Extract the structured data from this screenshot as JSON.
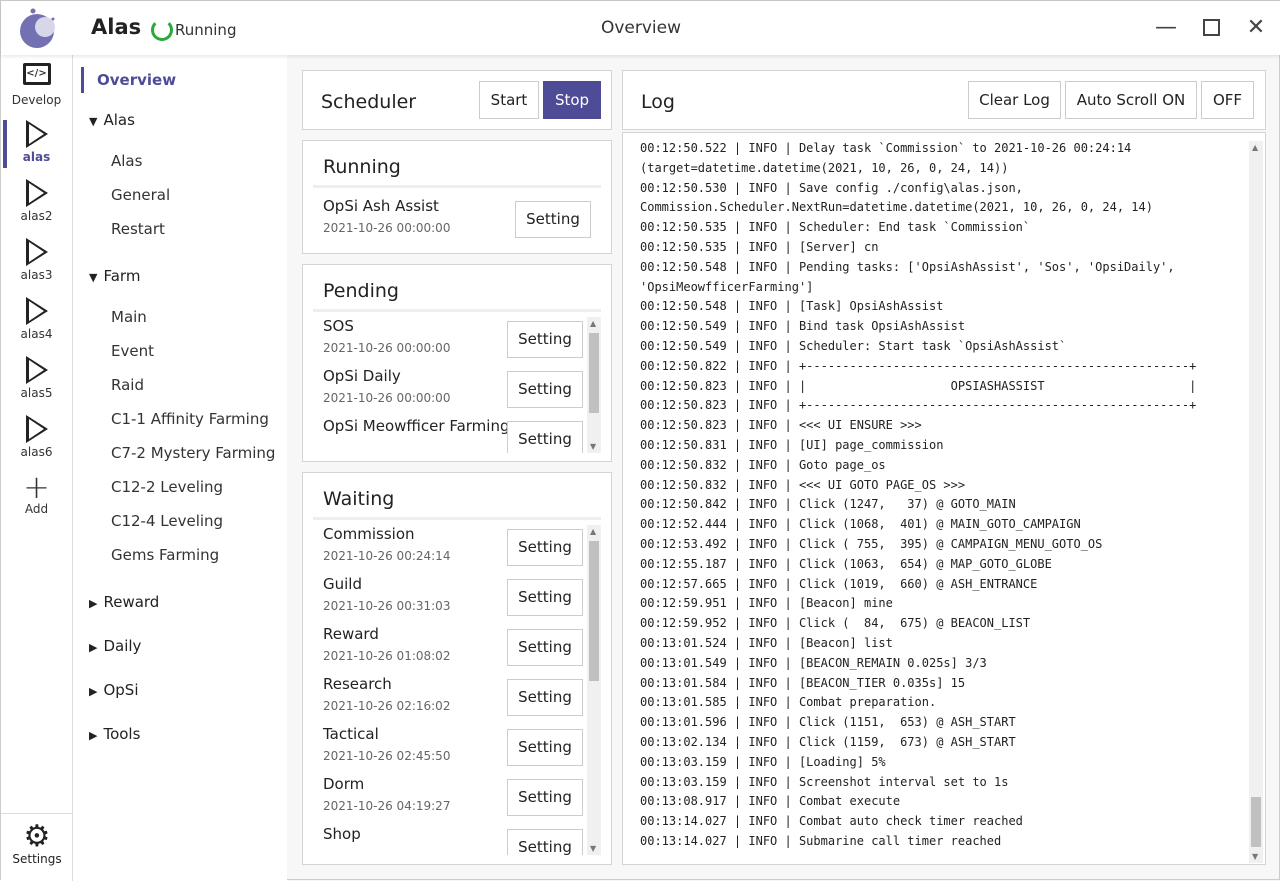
{
  "header": {
    "app_name": "Alas",
    "status": "Running",
    "page_title": "Overview"
  },
  "aside": {
    "items": [
      {
        "label": "Develop",
        "icon": "code-monitor-icon"
      },
      {
        "label": "alas",
        "active": true
      },
      {
        "label": "alas2"
      },
      {
        "label": "alas3"
      },
      {
        "label": "alas4"
      },
      {
        "label": "alas5"
      },
      {
        "label": "alas6"
      },
      {
        "label": "Add",
        "icon": "plus-icon"
      }
    ],
    "settings": "Settings"
  },
  "menu": {
    "overview": "Overview",
    "groups": [
      {
        "label": "Alas",
        "expanded": true,
        "items": [
          "Alas",
          "General",
          "Restart"
        ]
      },
      {
        "label": "Farm",
        "expanded": true,
        "items": [
          "Main",
          "Event",
          "Raid",
          "C1-1 Affinity Farming",
          "C7-2 Mystery Farming",
          "C12-2 Leveling",
          "C12-4 Leveling",
          "Gems Farming"
        ]
      },
      {
        "label": "Reward"
      },
      {
        "label": "Daily"
      },
      {
        "label": "OpSi"
      },
      {
        "label": "Tools"
      }
    ]
  },
  "scheduler": {
    "title": "Scheduler",
    "start": "Start",
    "stop": "Stop"
  },
  "setting_label": "Setting",
  "running": {
    "title": "Running",
    "tasks": [
      {
        "name": "OpSi Ash Assist",
        "time": "2021-10-26 00:00:00"
      }
    ]
  },
  "pending": {
    "title": "Pending",
    "tasks": [
      {
        "name": "SOS",
        "time": "2021-10-26 00:00:00"
      },
      {
        "name": "OpSi Daily",
        "time": "2021-10-26 00:00:00"
      },
      {
        "name": "OpSi Meowfficer Farming",
        "time": ""
      }
    ]
  },
  "waiting": {
    "title": "Waiting",
    "tasks": [
      {
        "name": "Commission",
        "time": "2021-10-26 00:24:14"
      },
      {
        "name": "Guild",
        "time": "2021-10-26 00:31:03"
      },
      {
        "name": "Reward",
        "time": "2021-10-26 01:08:02"
      },
      {
        "name": "Research",
        "time": "2021-10-26 02:16:02"
      },
      {
        "name": "Tactical",
        "time": "2021-10-26 02:45:50"
      },
      {
        "name": "Dorm",
        "time": "2021-10-26 04:19:27"
      },
      {
        "name": "Shop",
        "time": ""
      }
    ]
  },
  "log": {
    "title": "Log",
    "clear": "Clear Log",
    "auto_scroll": "Auto Scroll ON",
    "off": "OFF",
    "lines": [
      "00:12:50.522 | INFO | Delay task `Commission` to 2021-10-26 00:24:14",
      "(target=datetime.datetime(2021, 10, 26, 0, 24, 14))",
      "00:12:50.530 | INFO | Save config ./config\\alas.json,",
      "Commission.Scheduler.NextRun=datetime.datetime(2021, 10, 26, 0, 24, 14)",
      "00:12:50.535 | INFO | Scheduler: End task `Commission`",
      "00:12:50.535 | INFO | [Server] cn",
      "00:12:50.548 | INFO | Pending tasks: ['OpsiAshAssist', 'Sos', 'OpsiDaily',",
      "'OpsiMeowfficerFarming']",
      "00:12:50.548 | INFO | [Task] OpsiAshAssist",
      "00:12:50.549 | INFO | Bind task OpsiAshAssist",
      "00:12:50.549 | INFO | Scheduler: Start task `OpsiAshAssist`",
      "00:12:50.822 | INFO | +-----------------------------------------------------+",
      "00:12:50.823 | INFO | |                    OPSIASHASSIST                    |",
      "00:12:50.823 | INFO | +-----------------------------------------------------+",
      "00:12:50.823 | INFO | <<< UI ENSURE >>>",
      "00:12:50.831 | INFO | [UI] page_commission",
      "00:12:50.832 | INFO | Goto page_os",
      "00:12:50.832 | INFO | <<< UI GOTO PAGE_OS >>>",
      "00:12:50.842 | INFO | Click (1247,   37) @ GOTO_MAIN",
      "00:12:52.444 | INFO | Click (1068,  401) @ MAIN_GOTO_CAMPAIGN",
      "00:12:53.492 | INFO | Click ( 755,  395) @ CAMPAIGN_MENU_GOTO_OS",
      "00:12:55.187 | INFO | Click (1063,  654) @ MAP_GOTO_GLOBE",
      "00:12:57.665 | INFO | Click (1019,  660) @ ASH_ENTRANCE",
      "00:12:59.951 | INFO | [Beacon] mine",
      "00:12:59.952 | INFO | Click (  84,  675) @ BEACON_LIST",
      "00:13:01.524 | INFO | [Beacon] list",
      "00:13:01.549 | INFO | [BEACON_REMAIN 0.025s] 3/3",
      "00:13:01.584 | INFO | [BEACON_TIER 0.035s] 15",
      "00:13:01.585 | INFO | Combat preparation.",
      "00:13:01.596 | INFO | Click (1151,  653) @ ASH_START",
      "00:13:02.134 | INFO | Click (1159,  673) @ ASH_START",
      "00:13:03.159 | INFO | [Loading] 5%",
      "00:13:03.159 | INFO | Screenshot interval set to 1s",
      "00:13:08.917 | INFO | Combat execute",
      "00:13:14.027 | INFO | Combat auto check timer reached",
      "00:13:14.027 | INFO | Submarine call timer reached"
    ]
  },
  "colors": {
    "accent": "#4e4c97",
    "running": "#2aaa3a"
  }
}
